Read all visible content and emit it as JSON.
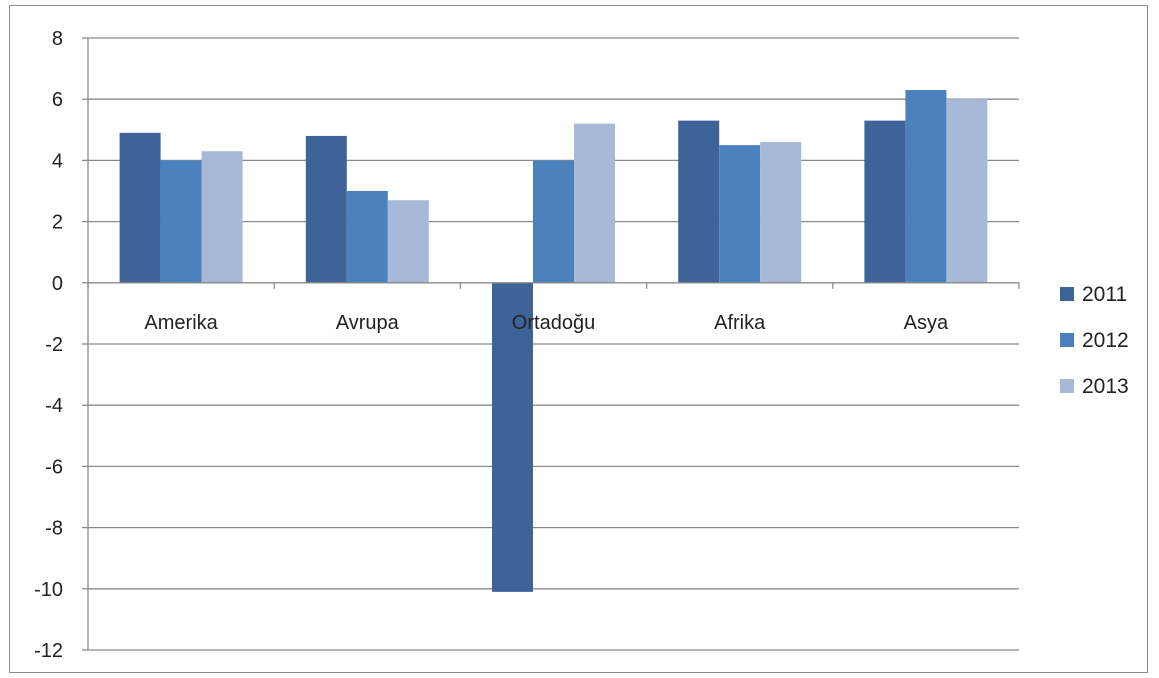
{
  "chart_data": {
    "type": "bar",
    "categories": [
      "Amerika",
      "Avrupa",
      "Ortadoğu",
      "Afrika",
      "Asya"
    ],
    "series": [
      {
        "name": "2011",
        "color": "#3d6399",
        "values": [
          4.9,
          4.8,
          -10.1,
          5.3,
          5.3
        ]
      },
      {
        "name": "2012",
        "color": "#4a81bd",
        "values": [
          4.0,
          3.0,
          4.0,
          4.5,
          6.3
        ]
      },
      {
        "name": "2013",
        "color": "#a7b9d6",
        "values": [
          4.3,
          2.7,
          5.2,
          4.6,
          6.0
        ]
      }
    ],
    "ylim": [
      -12,
      8
    ],
    "yticks": [
      8,
      6,
      4,
      2,
      0,
      -2,
      -4,
      -6,
      -8,
      -10,
      -12
    ],
    "grid": true,
    "legend_position": "right",
    "title": "",
    "xlabel": "",
    "ylabel": ""
  }
}
